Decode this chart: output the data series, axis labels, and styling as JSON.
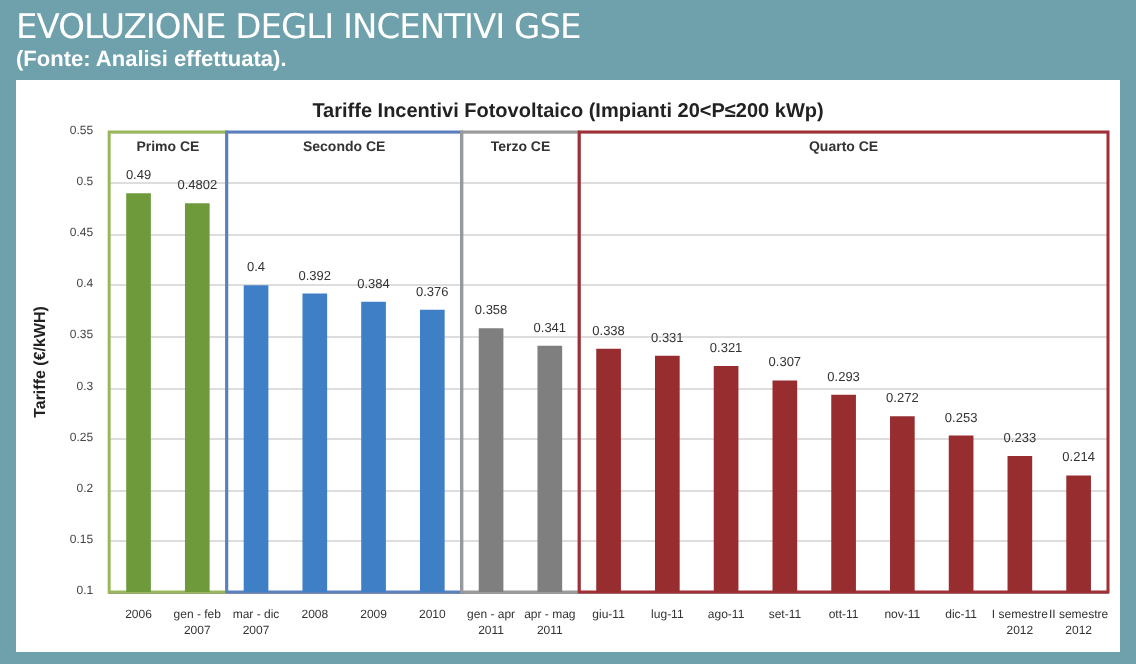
{
  "chart_data": {
    "type": "bar",
    "title": "EVOLUZIONE DEGLI INCENTIVI GSE",
    "subtitle": "Tariffe Incentivi Fotovoltaico (Impianti 20<P≤200 kWp)",
    "annotations": [
      "(Fonte: Analisi effettuata)."
    ],
    "ylabel": "Tariffe (€/kWH)",
    "categories": [
      "2006",
      "gen - feb\n2007",
      "mar - dic\n2007",
      "2008",
      "2009",
      "2010",
      "gen - apr\n2011",
      "apr - mag\n2011",
      "giu-11",
      "lug-11",
      "ago-11",
      "set-11",
      "ott-11",
      "nov-11",
      "dic-11",
      "I semestre\n2012",
      "II semestre\n2012"
    ],
    "values": [
      0.49,
      0.4802,
      0.4,
      0.392,
      0.384,
      0.376,
      0.358,
      0.341,
      0.338,
      0.331,
      0.321,
      0.307,
      0.293,
      0.272,
      0.253,
      0.233,
      0.214
    ],
    "colors": [
      "#6e9a3c",
      "#6e9a3c",
      "#3f7fc6",
      "#3f7fc6",
      "#3f7fc6",
      "#3f7fc6",
      "#7f7f7f",
      "#7f7f7f",
      "#982d30",
      "#982d30",
      "#982d30",
      "#982d30",
      "#982d30",
      "#982d30",
      "#982d30",
      "#982d30",
      "#982d30"
    ],
    "ylim": [
      0.1,
      0.55
    ],
    "yticks": [
      0.1,
      0.15,
      0.2,
      0.25,
      0.3,
      0.35,
      0.4,
      0.45,
      0.5,
      0.55
    ],
    "grid": "y",
    "data_labels": true,
    "bands": [
      {
        "axis": "x",
        "from": "2006",
        "to": "gen - feb\n2007",
        "label": "Primo CE",
        "color": "#9ab85a"
      },
      {
        "axis": "x",
        "from": "mar - dic\n2007",
        "to": "2010",
        "label": "Secondo CE",
        "color": "#5b80c0"
      },
      {
        "axis": "x",
        "from": "gen - apr\n2011",
        "to": "apr - mag\n2011",
        "label": "Terzo CE",
        "color": "#9a9a9a"
      },
      {
        "axis": "x",
        "from": "giu-11",
        "to": "II semestre\n2012",
        "label": "Quarto CE",
        "color": "#a03035"
      }
    ]
  }
}
